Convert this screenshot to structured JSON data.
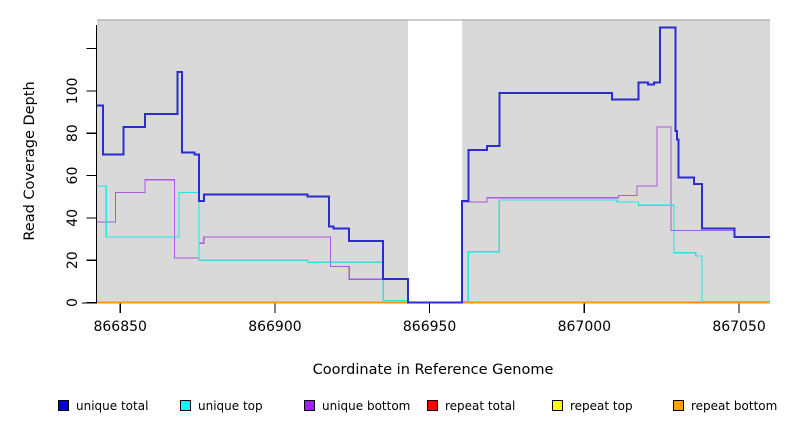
{
  "chart_data": {
    "type": "line",
    "subtype": "step-coverage",
    "title": "",
    "xlabel": "Coordinate in Reference Genome",
    "ylabel": "Read Coverage Depth",
    "xlim": [
      866842.5,
      867060
    ],
    "ylim": [
      0,
      133.5
    ],
    "x_ticks": [
      866850,
      866900,
      866950,
      867000,
      867050
    ],
    "x_tick_labels": [
      "866850",
      "866900",
      "866950",
      "867000",
      "867050"
    ],
    "y_ticks": [
      0,
      20,
      40,
      60,
      80,
      100,
      120
    ],
    "y_tick_labels": [
      "0",
      "20",
      "40",
      "60",
      "80",
      "100",
      ""
    ],
    "plot_bg_color": "#d9d9d9",
    "plot_border_color": "#9a9a9a",
    "gap_region": {
      "start": 866943,
      "end": 866960.5,
      "color": "#ffffff"
    },
    "grid": false,
    "legend_position": "bottom",
    "draw_order": [
      "repeat total",
      "repeat top",
      "repeat bottom",
      "unique bottom",
      "unique top",
      "unique total"
    ],
    "series": [
      {
        "name": "unique total",
        "color": "#2c2cd0",
        "line_width": 2,
        "steps": [
          [
            866842.5,
            866844.5,
            93
          ],
          [
            866844.5,
            866851,
            70
          ],
          [
            866851,
            866858,
            83
          ],
          [
            866858,
            866868.5,
            89
          ],
          [
            866868.5,
            866870,
            109
          ],
          [
            866870,
            866874,
            71
          ],
          [
            866874,
            866875.5,
            70
          ],
          [
            866875.5,
            866877,
            48
          ],
          [
            866877,
            866910.5,
            51
          ],
          [
            866910.5,
            866917.5,
            50
          ],
          [
            866917.5,
            866919,
            36
          ],
          [
            866919,
            866924,
            35
          ],
          [
            866924,
            866935,
            29
          ],
          [
            866935,
            866943,
            11
          ],
          [
            866943,
            866960.5,
            0
          ],
          [
            866960.5,
            866962.5,
            48
          ],
          [
            866962.5,
            866968.5,
            72
          ],
          [
            866968.5,
            866972.5,
            74
          ],
          [
            866972.5,
            867009,
            99
          ],
          [
            867009,
            867017.5,
            96
          ],
          [
            867017.5,
            867020.5,
            104
          ],
          [
            867020.5,
            867022.5,
            103
          ],
          [
            867022.5,
            867024.5,
            104
          ],
          [
            867024.5,
            867029.5,
            130
          ],
          [
            867029.5,
            867030,
            81
          ],
          [
            867030,
            867030.5,
            77
          ],
          [
            867030.5,
            867035.5,
            59
          ],
          [
            867035.5,
            867038,
            56
          ],
          [
            867038,
            867048.5,
            35
          ],
          [
            867048.5,
            867060,
            31
          ]
        ]
      },
      {
        "name": "unique top",
        "color": "#2ee0e0",
        "line_width": 1.2,
        "steps": [
          [
            866842.5,
            866845.5,
            55
          ],
          [
            866845.5,
            866869,
            31
          ],
          [
            866869,
            866875.5,
            52
          ],
          [
            866875.5,
            866910.5,
            20
          ],
          [
            866910.5,
            866935,
            19
          ],
          [
            866935,
            866943,
            1
          ],
          [
            866943,
            866960.5,
            0
          ],
          [
            866960.5,
            866962.5,
            0.5
          ],
          [
            866962.5,
            866972.5,
            24
          ],
          [
            866972.5,
            867010.5,
            48.5
          ],
          [
            867010.5,
            867017.5,
            47.5
          ],
          [
            867017.5,
            867029,
            46
          ],
          [
            867029,
            867036,
            23.5
          ],
          [
            867036,
            867038,
            22
          ],
          [
            867038,
            867060,
            0.5
          ]
        ]
      },
      {
        "name": "unique bottom",
        "color": "#ab5ae0",
        "line_width": 1.2,
        "steps": [
          [
            866842.5,
            866848.5,
            38
          ],
          [
            866848.5,
            866858,
            52
          ],
          [
            866858,
            866867.5,
            58
          ],
          [
            866867.5,
            866875.5,
            21
          ],
          [
            866875.5,
            866877,
            28
          ],
          [
            866877,
            866918,
            31
          ],
          [
            866918,
            866924,
            17
          ],
          [
            866924,
            866943,
            11
          ],
          [
            866943,
            866960.5,
            0
          ],
          [
            866960.5,
            866968.5,
            47.5
          ],
          [
            866968.5,
            867011,
            49.5
          ],
          [
            867011,
            867017,
            50.5
          ],
          [
            867017,
            867023.5,
            55
          ],
          [
            867023.5,
            867028,
            83
          ],
          [
            867028,
            867048.5,
            34
          ],
          [
            867048.5,
            867060,
            31
          ]
        ]
      },
      {
        "name": "repeat total",
        "color": "#e60000",
        "line_width": 1.2,
        "steps": [
          [
            866842.5,
            867060,
            0
          ]
        ]
      },
      {
        "name": "repeat top",
        "color": "#f0f000",
        "line_width": 1.2,
        "steps": [
          [
            866842.5,
            867060,
            0
          ]
        ]
      },
      {
        "name": "repeat bottom",
        "color": "#ff9708",
        "line_width": 1.6,
        "steps": [
          [
            866842.5,
            867060,
            0
          ]
        ]
      }
    ]
  },
  "legend": {
    "items": [
      {
        "label": "unique total",
        "swatch": "#0000dd",
        "x": 58
      },
      {
        "label": "unique top",
        "swatch": "#00ffff",
        "x": 180
      },
      {
        "label": "unique bottom",
        "swatch": "#a020f0",
        "x": 304
      },
      {
        "label": "repeat total",
        "swatch": "#ff0000",
        "x": 427
      },
      {
        "label": "repeat top",
        "swatch": "#ffff00",
        "x": 552
      },
      {
        "label": "repeat bottom",
        "swatch": "#ffa500",
        "x": 673
      }
    ]
  }
}
